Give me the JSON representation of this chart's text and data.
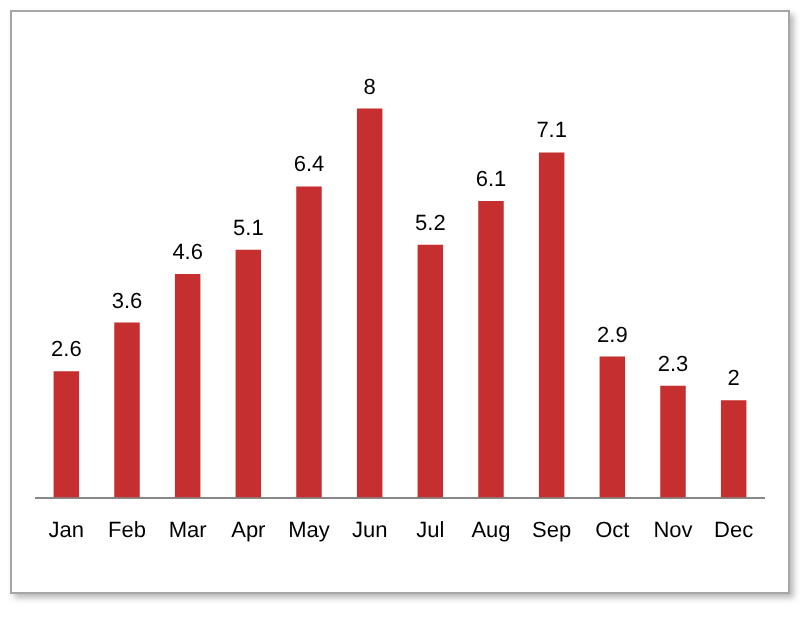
{
  "chart_data": {
    "type": "bar",
    "categories": [
      "Jan",
      "Feb",
      "Mar",
      "Apr",
      "May",
      "Jun",
      "Jul",
      "Aug",
      "Sep",
      "Oct",
      "Nov",
      "Dec"
    ],
    "values": [
      2.6,
      3.6,
      4.6,
      5.1,
      6.4,
      8,
      5.2,
      6.1,
      7.1,
      2.9,
      2.3,
      2
    ],
    "color": "#c62f2f",
    "data_labels": true,
    "grid": false,
    "legend": false
  }
}
